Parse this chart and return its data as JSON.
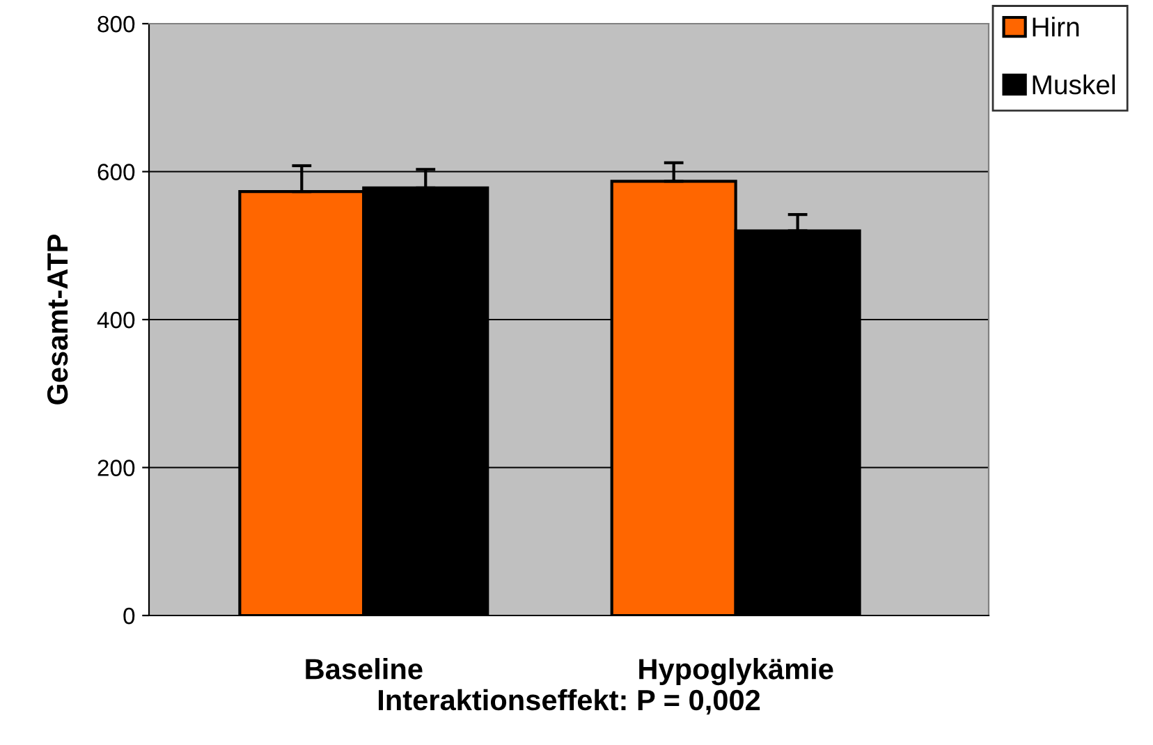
{
  "chart_data": {
    "type": "bar",
    "ylabel": "Gesamt-ATP",
    "xlabel": "Interaktionseffekt: P = 0,002",
    "categories": [
      "Baseline",
      "Hypoglykämie"
    ],
    "series": [
      {
        "name": "Hirn",
        "color": "#ff6600",
        "values": [
          573,
          587
        ],
        "errors": [
          [
            573,
            608
          ],
          [
            587,
            612
          ]
        ]
      },
      {
        "name": "Muskel",
        "color": "#000000",
        "values": [
          578,
          520
        ],
        "errors": [
          [
            578,
            603
          ],
          [
            520,
            542
          ]
        ]
      }
    ],
    "ylim": [
      0,
      800
    ],
    "yticks": [
      0,
      200,
      400,
      600,
      800
    ],
    "grid": "y",
    "legend": "top right"
  }
}
